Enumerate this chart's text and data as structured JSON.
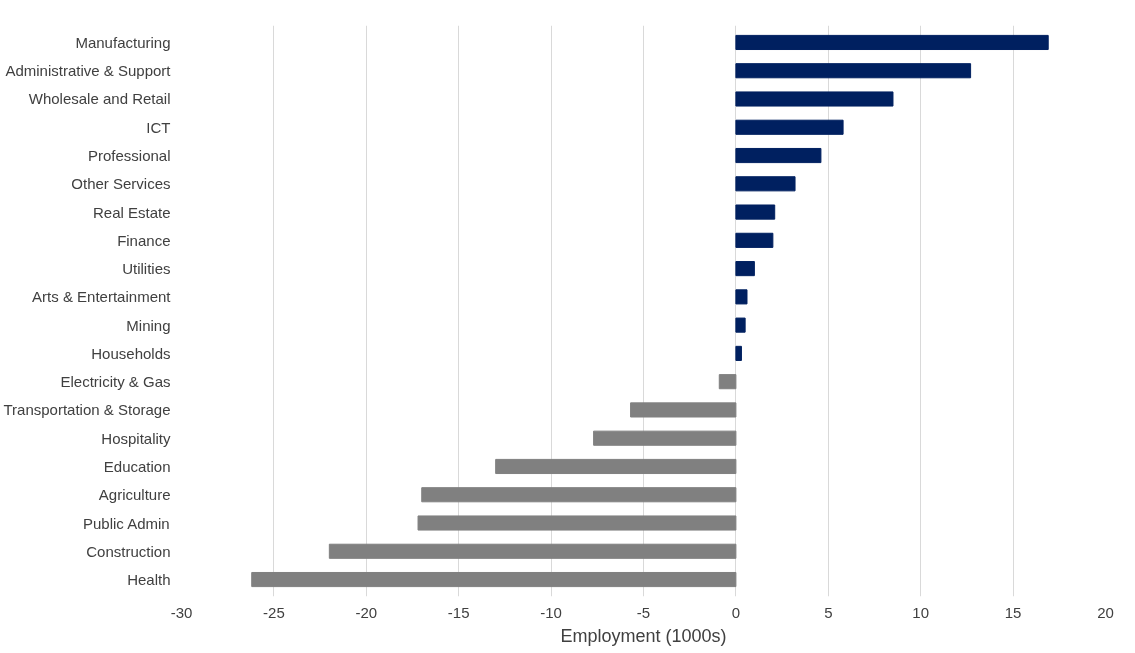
{
  "chart_data": {
    "type": "bar",
    "orientation": "horizontal",
    "xlabel": "Employment (1000s)",
    "categories": [
      "Manufacturing",
      "Administrative & Support",
      "Wholesale and Retail",
      "ICT",
      "Professional",
      "Other Services",
      "Real Estate",
      "Finance",
      "Utilities",
      "Arts & Entertainment",
      "Mining",
      "Households",
      "Electricity & Gas",
      "Transportation & Storage",
      "Hospitality",
      "Education",
      "Agriculture",
      "Public Admin",
      "Construction",
      "Health"
    ],
    "values": [
      16.9,
      12.7,
      8.5,
      5.8,
      4.6,
      3.2,
      2.1,
      2.0,
      1.0,
      0.6,
      0.5,
      0.3,
      -0.9,
      -5.7,
      -7.7,
      -13.0,
      -17.0,
      -17.2,
      -22.0,
      -26.2
    ],
    "colors": [
      "#002060",
      "#002060",
      "#002060",
      "#002060",
      "#002060",
      "#002060",
      "#002060",
      "#002060",
      "#002060",
      "#002060",
      "#002060",
      "#002060",
      "#808080",
      "#808080",
      "#808080",
      "#808080",
      "#808080",
      "#808080",
      "#808080",
      "#808080"
    ],
    "xlim": [
      -30,
      20
    ],
    "xticks": [
      -30,
      -25,
      -20,
      -15,
      -10,
      -5,
      0,
      5,
      10,
      15,
      20
    ],
    "grid": "x"
  }
}
